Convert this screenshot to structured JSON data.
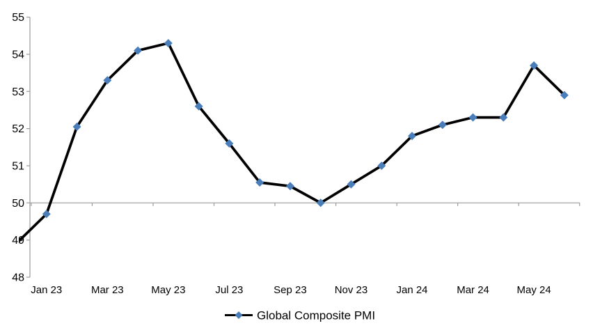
{
  "chart_data": {
    "type": "line",
    "title": "",
    "categories": [
      "Dec 22",
      "Jan 23",
      "Feb 23",
      "Mar 23",
      "Apr 23",
      "May 23",
      "Jun 23",
      "Jul 23",
      "Aug 23",
      "Sep 23",
      "Oct 23",
      "Nov 23",
      "Dec 23",
      "Jan 24",
      "Feb 24",
      "Mar 24",
      "Apr 24",
      "May 24",
      "Jun 24"
    ],
    "series": [
      {
        "name": "Global Composite PMI",
        "values": [
          48.9,
          49.7,
          52.05,
          53.3,
          54.1,
          54.3,
          52.6,
          51.6,
          50.55,
          50.45,
          50.0,
          50.5,
          51.0,
          51.8,
          52.1,
          52.3,
          52.3,
          53.7,
          52.9
        ]
      }
    ],
    "x_axis": {
      "visible_tick_labels": [
        "Jan 23",
        "Mar 23",
        "May 23",
        "Jul 23",
        "Sep 23",
        "Nov 23",
        "Jan 24",
        "Mar 24",
        "May 24"
      ],
      "label_interval_months": 2
    },
    "y_axis": {
      "ticks": [
        48,
        49,
        50,
        51,
        52,
        53,
        54,
        55
      ],
      "range": [
        48,
        55
      ]
    },
    "reference_line_value": 50,
    "legend": {
      "label": "Global Composite PMI",
      "position": "bottom",
      "marker_shape": "diamond"
    },
    "style": {
      "line_color": "#000000",
      "marker_fill": "#4A7EBB",
      "axis_color": "#9A9A9A",
      "text_color": "#000000",
      "background": "#FFFFFF",
      "grid": false,
      "marker_shape": "diamond",
      "first_point_marker_hidden": true
    }
  }
}
